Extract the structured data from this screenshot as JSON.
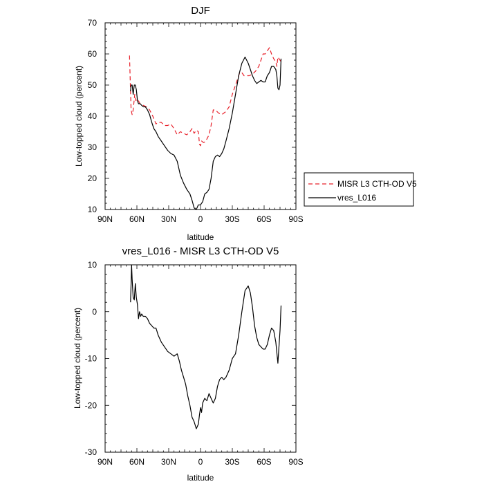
{
  "chart_data": [
    {
      "type": "line",
      "title": "DJF",
      "xlabel": "latitude",
      "ylabel": "Low-topped cloud (percent)",
      "xlim": [
        90,
        -90
      ],
      "ylim": [
        10,
        70
      ],
      "x_ticks": [
        90,
        60,
        30,
        0,
        -30,
        -60,
        -90
      ],
      "x_tick_labels": [
        "90N",
        "60N",
        "30N",
        "0",
        "30S",
        "60S",
        "90S"
      ],
      "y_ticks": [
        10,
        20,
        30,
        40,
        50,
        60,
        70
      ],
      "y_tick_labels": [
        "10",
        "20",
        "30",
        "40",
        "50",
        "60",
        "70"
      ],
      "legend_position": "right",
      "series": [
        {
          "name": "MISR L3 CTH-OD V5",
          "color": "#e8202a",
          "dash": "dashed",
          "x": [
            67,
            65.5,
            64.5,
            63.5,
            62,
            61,
            59.5,
            57,
            54,
            51,
            48,
            45,
            42,
            40,
            37,
            34,
            31,
            28,
            25,
            22,
            19,
            16,
            13,
            10,
            8,
            6,
            4,
            2,
            1,
            0,
            -1,
            -3,
            -5,
            -8,
            -10,
            -12,
            -14,
            -17,
            -20,
            -24,
            -27,
            -30,
            -33,
            -35,
            -37,
            -39,
            -41,
            -43,
            -46,
            -49,
            -52,
            -55,
            -57,
            -59,
            -61,
            -63,
            -65,
            -67,
            -69,
            -71,
            -72,
            -73,
            -74,
            -75,
            -76
          ],
          "y": [
            59.5,
            42,
            40.5,
            42,
            47,
            45,
            45.5,
            44,
            43.5,
            43,
            42,
            40,
            37.5,
            38,
            38,
            37,
            37,
            37.5,
            36,
            34,
            35,
            34.5,
            34,
            35,
            36,
            34.5,
            35.5,
            35,
            31,
            30.5,
            32,
            31.5,
            32,
            34,
            37,
            42,
            42,
            41,
            40.5,
            41.5,
            43,
            47,
            50,
            52,
            54,
            54,
            53,
            53,
            53,
            53.5,
            54.5,
            56,
            58,
            60,
            60,
            61,
            62,
            60,
            58.5,
            57.5,
            56,
            59,
            58.5,
            58,
            57.5
          ]
        },
        {
          "name": "vres_L016",
          "color": "#000000",
          "dash": "solid",
          "x": [
            66,
            65.5,
            64.5,
            63.5,
            62.5,
            61.5,
            60.5,
            59.5,
            58.5,
            57,
            55.5,
            54,
            52,
            50,
            48,
            46,
            44,
            42,
            40,
            37,
            34,
            31,
            28,
            25,
            22,
            19,
            16,
            13,
            10,
            8,
            6,
            4,
            2,
            1,
            0,
            -1,
            -2,
            -4,
            -6,
            -8,
            -10,
            -12,
            -14,
            -16,
            -18,
            -20,
            -22,
            -24,
            -27,
            -30,
            -33,
            -36,
            -39,
            -42,
            -45,
            -47,
            -49,
            -51,
            -53,
            -55,
            -57,
            -59,
            -61,
            -63,
            -65,
            -67,
            -69,
            -71,
            -72,
            -73,
            -74,
            -75,
            -76
          ],
          "y": [
            48,
            50,
            50,
            47,
            50,
            50,
            48.5,
            45,
            44,
            44,
            43.5,
            43,
            43,
            42,
            40.5,
            38,
            36,
            35,
            33.5,
            32,
            30.5,
            29,
            28,
            27.5,
            25.5,
            21,
            18.5,
            16.5,
            15,
            13,
            10.5,
            10,
            11.5,
            11.5,
            11.5,
            12,
            12.5,
            15,
            15.5,
            16.5,
            20,
            25.5,
            27,
            27.5,
            27,
            28,
            29.5,
            32,
            36,
            41,
            47,
            53,
            57,
            59,
            57,
            55,
            53,
            51.5,
            50.5,
            51,
            51.5,
            51,
            51,
            53,
            54,
            56,
            56,
            55,
            53,
            49,
            48.5,
            50,
            58.5
          ]
        }
      ]
    },
    {
      "type": "line",
      "title": "vres_L016 - MISR L3 CTH-OD V5",
      "xlabel": "latitude",
      "ylabel": "Low-topped cloud (percent)",
      "xlim": [
        90,
        -90
      ],
      "ylim": [
        -30,
        10
      ],
      "x_ticks": [
        90,
        60,
        30,
        0,
        -30,
        -60,
        -90
      ],
      "x_tick_labels": [
        "90N",
        "60N",
        "30N",
        "0",
        "30S",
        "60S",
        "90S"
      ],
      "y_ticks": [
        -30,
        -20,
        -10,
        0,
        10
      ],
      "y_tick_labels": [
        "-30",
        "-20",
        "-10",
        "0",
        "10"
      ],
      "series": [
        {
          "color": "#000000",
          "dash": "solid",
          "x": [
            66,
            65.5,
            65,
            64.5,
            63.5,
            62.5,
            61.5,
            60.5,
            59.5,
            58.5,
            57.5,
            56.5,
            55.5,
            54,
            52,
            50,
            48,
            46,
            44,
            42,
            40,
            37,
            34,
            31,
            28,
            25,
            22,
            20,
            18,
            16,
            14,
            12,
            10,
            8,
            6,
            4,
            2,
            1,
            0,
            -1,
            -2,
            -4,
            -6,
            -8,
            -10,
            -12,
            -14,
            -16,
            -18,
            -20,
            -22,
            -24,
            -27,
            -30,
            -33,
            -36,
            -39,
            -42,
            -45,
            -47,
            -49,
            -51,
            -53,
            -55,
            -57,
            -59,
            -61,
            -63,
            -65,
            -67,
            -69,
            -71,
            -73,
            -75,
            -76
          ],
          "y": [
            2,
            6,
            10,
            7,
            3,
            2.5,
            6,
            3,
            1.5,
            -1.5,
            0,
            -1,
            -0.5,
            -1,
            -1,
            -1.5,
            -2.5,
            -3,
            -3.5,
            -3.5,
            -5,
            -6.5,
            -7.5,
            -8.5,
            -9,
            -9.5,
            -9,
            -10.5,
            -12.5,
            -14,
            -15.5,
            -18,
            -20,
            -22.5,
            -23.5,
            -25,
            -24,
            -22,
            -20.5,
            -21.5,
            -19.5,
            -18.5,
            -19,
            -17.5,
            -18.5,
            -19.5,
            -18.5,
            -16,
            -14.5,
            -14,
            -14.5,
            -14,
            -12.5,
            -10,
            -9,
            -5,
            0,
            4.5,
            5.5,
            4,
            1,
            -3,
            -5.5,
            -7,
            -7.5,
            -8,
            -8,
            -7,
            -5,
            -3.5,
            -4,
            -6.5,
            -11,
            -4,
            1.3
          ]
        }
      ]
    }
  ]
}
